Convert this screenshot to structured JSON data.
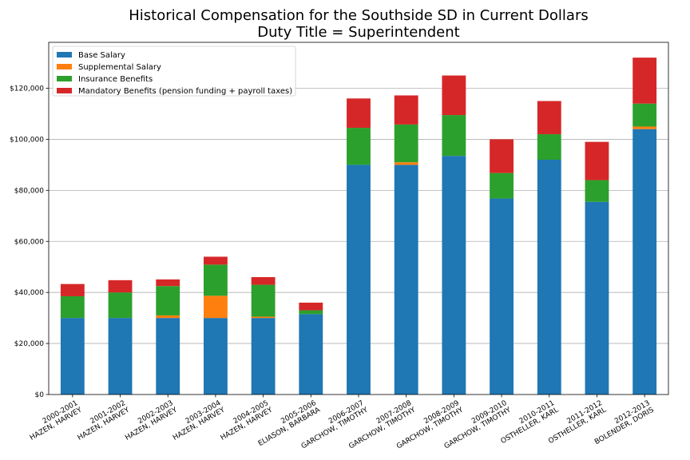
{
  "chart_data": {
    "type": "bar",
    "stacked": true,
    "title": "Historical Compensation for the Southside SD in Current Dollars",
    "subtitle": "Duty Title = Superintendent",
    "xlabel": "",
    "ylabel": "",
    "ylim": [
      0,
      138000
    ],
    "y_ticks": [
      0,
      20000,
      40000,
      60000,
      80000,
      100000,
      120000
    ],
    "y_tick_labels": [
      "$0",
      "$20,000",
      "$40,000",
      "$60,000",
      "$80,000",
      "$100,000",
      "$120,000"
    ],
    "grid": "y",
    "legend_position": "top-left",
    "categories": [
      [
        "2000-2001",
        "HAZEN, HARVEY"
      ],
      [
        "2001-2002",
        "HAZEN, HARVEY"
      ],
      [
        "2002-2003",
        "HAZEN, HARVEY"
      ],
      [
        "2003-2004",
        "HAZEN, HARVEY"
      ],
      [
        "2004-2005",
        "HAZEN, HARVEY"
      ],
      [
        "2005-2006",
        "ELIASON, BARBARA"
      ],
      [
        "2006-2007",
        "GARCHOW, TIMOTHY"
      ],
      [
        "2007-2008",
        "GARCHOW, TIMOTHY"
      ],
      [
        "2008-2009",
        "GARCHOW, TIMOTHY"
      ],
      [
        "2009-2010",
        "GARCHOW, TIMOTHY"
      ],
      [
        "2010-2011",
        "OSTHELLER, KARL"
      ],
      [
        "2011-2012",
        "OSTHELLER, KARL"
      ],
      [
        "2012-2013",
        "BOLENDER, DORIS"
      ]
    ],
    "series": [
      {
        "name": "Base Salary",
        "color": "#1f77b4",
        "values": [
          30000,
          30000,
          30000,
          30000,
          30000,
          31500,
          90000,
          90000,
          93500,
          76800,
          92000,
          75500,
          104000
        ]
      },
      {
        "name": "Supplemental Salary",
        "color": "#ff7f0e",
        "values": [
          0,
          0,
          1000,
          8700,
          500,
          0,
          0,
          1000,
          0,
          0,
          0,
          0,
          1000
        ]
      },
      {
        "name": "Insurance Benefits",
        "color": "#2ca02c",
        "values": [
          8500,
          10000,
          11500,
          12200,
          12500,
          1500,
          14500,
          14800,
          16000,
          10000,
          10000,
          8500,
          9000
        ]
      },
      {
        "name": "Mandatory Benefits (pension funding + payroll taxes)",
        "color": "#d62728",
        "values": [
          4800,
          4800,
          2600,
          3100,
          3000,
          3000,
          11500,
          11400,
          15500,
          13200,
          13000,
          15000,
          18000
        ]
      }
    ]
  }
}
